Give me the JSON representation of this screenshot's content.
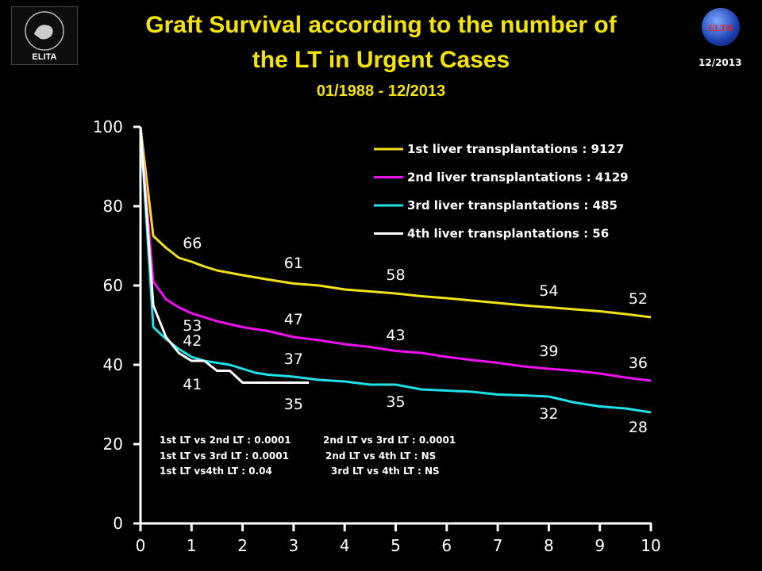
{
  "header": {
    "title_line1": "Graft Survival according to the number of",
    "title_line2": "the LT in Urgent Cases",
    "subtitle": "01/1988 - 12/2013",
    "date_stamp": "12/2013",
    "logo_left_text": "ELITA",
    "logo_right_text": "ELTR"
  },
  "colors": {
    "background": "#000000",
    "title": "#f5e400",
    "series_1": "#f2e21a",
    "series_2": "#ee10ee",
    "series_3": "#22e0e8",
    "series_4": "#ffffff",
    "axis": "#ffffff"
  },
  "chart_data": {
    "type": "line",
    "xlim": [
      0,
      10
    ],
    "ylim": [
      0,
      100
    ],
    "x_ticks": [
      "0",
      "1",
      "2",
      "3",
      "4",
      "5",
      "6",
      "7",
      "8",
      "9",
      "10"
    ],
    "y_ticks": [
      "0",
      "20",
      "40",
      "60",
      "80",
      "100"
    ],
    "grid": false,
    "legend_position": "top-right",
    "series": [
      {
        "name": "1st liver transplantations : 9127",
        "color": "#f2e21a",
        "x": [
          0,
          0.25,
          0.5,
          0.75,
          1,
          1.25,
          1.5,
          2,
          2.5,
          3,
          3.5,
          4,
          4.5,
          5,
          5.5,
          6,
          6.5,
          7,
          7.5,
          8,
          8.5,
          9,
          9.5,
          10
        ],
        "y": [
          100,
          72.5,
          69.5,
          67,
          66,
          64.8,
          63.8,
          62.6,
          61.5,
          60.5,
          60,
          59,
          58.5,
          58,
          57.3,
          56.8,
          56.2,
          55.6,
          55,
          54.5,
          54,
          53.5,
          52.8,
          52
        ]
      },
      {
        "name": "2nd liver transplantations : 4129",
        "color": "#ee10ee",
        "x": [
          0,
          0.25,
          0.5,
          0.75,
          1,
          1.25,
          1.5,
          2,
          2.5,
          3,
          3.5,
          4,
          4.5,
          5,
          5.5,
          6,
          6.5,
          7,
          7.5,
          8,
          8.5,
          9,
          9.5,
          10
        ],
        "y": [
          100,
          61,
          56.5,
          54.5,
          53,
          52,
          51,
          49.5,
          48.5,
          47,
          46.2,
          45.2,
          44.5,
          43.5,
          43,
          42,
          41.2,
          40.5,
          39.6,
          39,
          38.5,
          37.8,
          36.8,
          36
        ]
      },
      {
        "name": "3rd liver transplantations : 485",
        "color": "#22e0e8",
        "x": [
          0,
          0.25,
          0.5,
          0.75,
          1,
          1.25,
          1.5,
          1.75,
          2,
          2.25,
          2.5,
          3,
          3.5,
          4,
          4.5,
          5,
          5.5,
          6,
          6.5,
          7,
          7.5,
          8,
          8.5,
          9,
          9.5,
          10
        ],
        "y": [
          100,
          49.5,
          46.5,
          44,
          42,
          41,
          40.5,
          40,
          39,
          38,
          37.5,
          37,
          36.2,
          35.8,
          35,
          35,
          33.8,
          33.5,
          33.2,
          32.5,
          32.3,
          32,
          30.5,
          29.5,
          29,
          28
        ]
      },
      {
        "name": "4th liver transplantations : 56",
        "color": "#ffffff",
        "x": [
          0,
          0.25,
          0.5,
          0.75,
          1,
          1.25,
          1.5,
          1.75,
          2,
          2.25,
          2.5,
          3,
          3.3
        ],
        "y": [
          100,
          55,
          47,
          43,
          41,
          41,
          38.5,
          38.5,
          35.5,
          35.5,
          35.5,
          35.5,
          35.5
        ]
      }
    ],
    "data_labels": [
      {
        "text": "66",
        "x": 1,
        "y": 66,
        "series": 0
      },
      {
        "text": "61",
        "x": 3,
        "y": 61,
        "series": 0
      },
      {
        "text": "58",
        "x": 5,
        "y": 58,
        "series": 0
      },
      {
        "text": "54",
        "x": 8,
        "y": 54,
        "series": 0
      },
      {
        "text": "52",
        "x": 10,
        "y": 52,
        "series": 0
      },
      {
        "text": "53",
        "x": 1,
        "y": 53,
        "series": 1
      },
      {
        "text": "47",
        "x": 3,
        "y": 47,
        "series": 1
      },
      {
        "text": "43",
        "x": 5,
        "y": 43,
        "series": 1
      },
      {
        "text": "39",
        "x": 8,
        "y": 39,
        "series": 1
      },
      {
        "text": "36",
        "x": 10,
        "y": 36,
        "series": 1
      },
      {
        "text": "42",
        "x": 1,
        "y": 42,
        "series": 2
      },
      {
        "text": "37",
        "x": 3,
        "y": 37,
        "series": 2
      },
      {
        "text": "35",
        "x": 5,
        "y": 35,
        "series": 2
      },
      {
        "text": "32",
        "x": 8,
        "y": 32,
        "series": 2
      },
      {
        "text": "28",
        "x": 10,
        "y": 28,
        "series": 2
      },
      {
        "text": "41",
        "x": 1,
        "y": 41,
        "series": 3
      },
      {
        "text": "35",
        "x": 3,
        "y": 35,
        "series": 3
      }
    ],
    "stats": [
      "1st LT vs 2nd LT : 0.0001",
      "1st LT vs 3rd LT : 0.0001",
      "1st LT vs4th LT : 0.04",
      "2nd  LT vs 3rd LT  : 0.0001",
      "2nd LT vs 4th LT : NS",
      "3rd LT vs 4th LT : NS"
    ]
  }
}
